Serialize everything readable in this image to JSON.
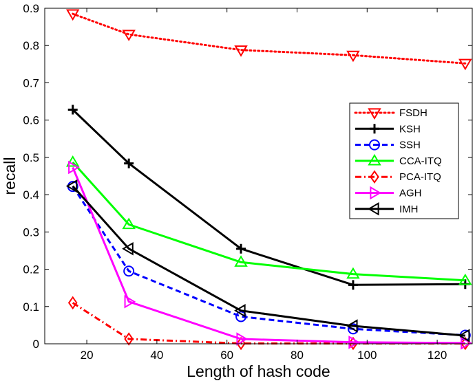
{
  "chart_data": {
    "type": "line",
    "title": "",
    "xlabel": "Length of hash code",
    "ylabel": "recall",
    "xlim": [
      8,
      130
    ],
    "ylim": [
      0,
      0.9
    ],
    "xticks": [
      "20",
      "40",
      "60",
      "80",
      "100",
      "120"
    ],
    "yticks": [
      "0",
      "0.1",
      "0.2",
      "0.3",
      "0.4",
      "0.5",
      "0.6",
      "0.7",
      "0.8",
      "0.9"
    ],
    "grid": false,
    "legend_position": "right",
    "x": [
      16,
      32,
      64,
      96,
      128
    ],
    "series": [
      {
        "name": "FSDH",
        "color": "#ff0000",
        "dash": "dotted",
        "marker": "triangle-down",
        "values": [
          0.885,
          0.83,
          0.788,
          0.774,
          0.752
        ]
      },
      {
        "name": "KSH",
        "color": "#000000",
        "dash": "solid",
        "marker": "plus",
        "values": [
          0.628,
          0.484,
          0.255,
          0.158,
          0.16
        ]
      },
      {
        "name": "SSH",
        "color": "#0000ff",
        "dash": "dashed",
        "marker": "circle",
        "values": [
          0.422,
          0.195,
          0.073,
          0.04,
          0.023
        ]
      },
      {
        "name": "CCA-ITQ",
        "color": "#00ff00",
        "dash": "solid",
        "marker": "triangle-up",
        "values": [
          0.487,
          0.32,
          0.219,
          0.187,
          0.17
        ]
      },
      {
        "name": "PCA-ITQ",
        "color": "#ff0000",
        "dash": "dashdot",
        "marker": "diamond",
        "values": [
          0.11,
          0.013,
          0.001,
          0.001,
          0.001
        ]
      },
      {
        "name": "AGH",
        "color": "#ff00ff",
        "dash": "solid",
        "marker": "triangle-right",
        "values": [
          0.473,
          0.113,
          0.013,
          0.004,
          0.002
        ]
      },
      {
        "name": "IMH",
        "color": "#000000",
        "dash": "solid",
        "marker": "triangle-left",
        "values": [
          0.423,
          0.255,
          0.089,
          0.048,
          0.022
        ]
      }
    ]
  }
}
